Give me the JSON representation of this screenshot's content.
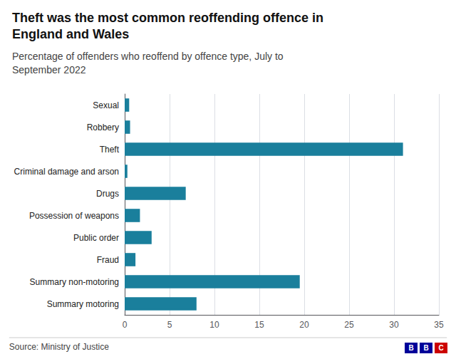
{
  "chart_data": {
    "type": "bar",
    "orientation": "horizontal",
    "title": "Theft was the most common reoffending offence in\nEngland and Wales",
    "subtitle": "Percentage of offenders who reoffend by offence type, July to\nSeptember 2022",
    "source": "Source: Ministry of Justice",
    "logo_letters": [
      "B",
      "B",
      "C"
    ],
    "logo_colors": [
      "#000099",
      "#000099",
      "#cc0000"
    ],
    "categories": [
      "Summary motoring",
      "Summary non-motoring",
      "Fraud",
      "Public order",
      "Possession of weapons",
      "Drugs",
      "Criminal damage and arson",
      "Theft",
      "Robbery",
      "Sexual"
    ],
    "values": [
      8.0,
      19.5,
      1.2,
      3.0,
      1.7,
      6.8,
      0.3,
      31.0,
      0.6,
      0.5
    ],
    "color": "#1a7f9c",
    "xlim": [
      0,
      35
    ],
    "xticks": [
      0,
      5,
      10,
      15,
      20,
      25,
      30,
      35
    ],
    "grid": true
  }
}
